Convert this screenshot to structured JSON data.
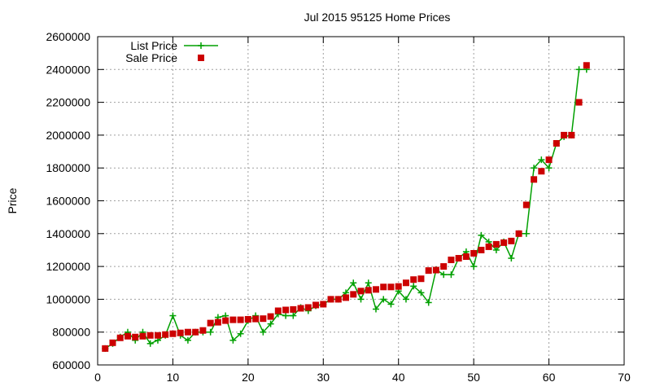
{
  "chart_data": {
    "type": "line",
    "title": "Jul 2015 95125 Home Prices",
    "xlabel": "",
    "ylabel": "Price",
    "xlim": [
      0,
      70
    ],
    "ylim": [
      600000,
      2600000
    ],
    "xticks": [
      "0",
      "10",
      "20",
      "30",
      "40",
      "50",
      "60",
      "70"
    ],
    "yticks": [
      "600000",
      "800000",
      "1000000",
      "1200000",
      "1400000",
      "1600000",
      "1800000",
      "2000000",
      "2200000",
      "2400000",
      "2600000"
    ],
    "grid": true,
    "legend_position": "top-left",
    "series": [
      {
        "name": "List Price",
        "style": "line+cross",
        "color": "#00a000",
        "x": [
          1,
          2,
          3,
          4,
          5,
          6,
          7,
          8,
          9,
          10,
          11,
          12,
          13,
          14,
          15,
          16,
          17,
          18,
          19,
          20,
          21,
          22,
          23,
          24,
          25,
          26,
          27,
          28,
          29,
          30,
          31,
          32,
          33,
          34,
          35,
          36,
          37,
          38,
          39,
          40,
          41,
          42,
          43,
          44,
          45,
          46,
          47,
          48,
          49,
          50,
          51,
          52,
          53,
          54,
          55,
          56,
          57,
          58,
          59,
          60,
          61,
          62,
          63,
          64,
          65
        ],
        "values": [
          700000,
          730000,
          770000,
          800000,
          750000,
          800000,
          730000,
          750000,
          780000,
          900000,
          780000,
          750000,
          800000,
          800000,
          800000,
          890000,
          900000,
          750000,
          790000,
          870000,
          900000,
          800000,
          850000,
          910000,
          900000,
          900000,
          950000,
          930000,
          960000,
          970000,
          1000000,
          1000000,
          1040000,
          1100000,
          1000000,
          1100000,
          940000,
          1000000,
          970000,
          1050000,
          1000000,
          1080000,
          1040000,
          980000,
          1180000,
          1150000,
          1150000,
          1250000,
          1290000,
          1200000,
          1390000,
          1350000,
          1300000,
          1350000,
          1250000,
          1400000,
          1400000,
          1800000,
          1850000,
          1800000,
          1950000,
          1990000,
          2000000,
          2400000,
          2400000
        ]
      },
      {
        "name": "Sale Price",
        "style": "square",
        "color": "#cc0000",
        "x": [
          1,
          2,
          3,
          4,
          5,
          6,
          7,
          8,
          9,
          10,
          11,
          12,
          13,
          14,
          15,
          16,
          17,
          18,
          19,
          20,
          21,
          22,
          23,
          24,
          25,
          26,
          27,
          28,
          29,
          30,
          31,
          32,
          33,
          34,
          35,
          36,
          37,
          38,
          39,
          40,
          41,
          42,
          43,
          44,
          45,
          46,
          47,
          48,
          49,
          50,
          51,
          52,
          53,
          54,
          55,
          56,
          57,
          58,
          59,
          60,
          61,
          62,
          63,
          64,
          65
        ],
        "values": [
          700000,
          735000,
          765000,
          775000,
          770000,
          775000,
          780000,
          780000,
          785000,
          790000,
          795000,
          800000,
          800000,
          810000,
          855000,
          860000,
          870000,
          875000,
          875000,
          878000,
          880000,
          882000,
          895000,
          930000,
          935000,
          938000,
          945000,
          950000,
          965000,
          970000,
          1000000,
          1000000,
          1010000,
          1030000,
          1050000,
          1055000,
          1060000,
          1075000,
          1075000,
          1078000,
          1100000,
          1120000,
          1125000,
          1175000,
          1178000,
          1200000,
          1240000,
          1250000,
          1260000,
          1280000,
          1300000,
          1320000,
          1335000,
          1345000,
          1355000,
          1400000,
          1575000,
          1730000,
          1780000,
          1850000,
          1950000,
          2000000,
          2000000,
          2200000,
          2425000
        ]
      }
    ]
  }
}
